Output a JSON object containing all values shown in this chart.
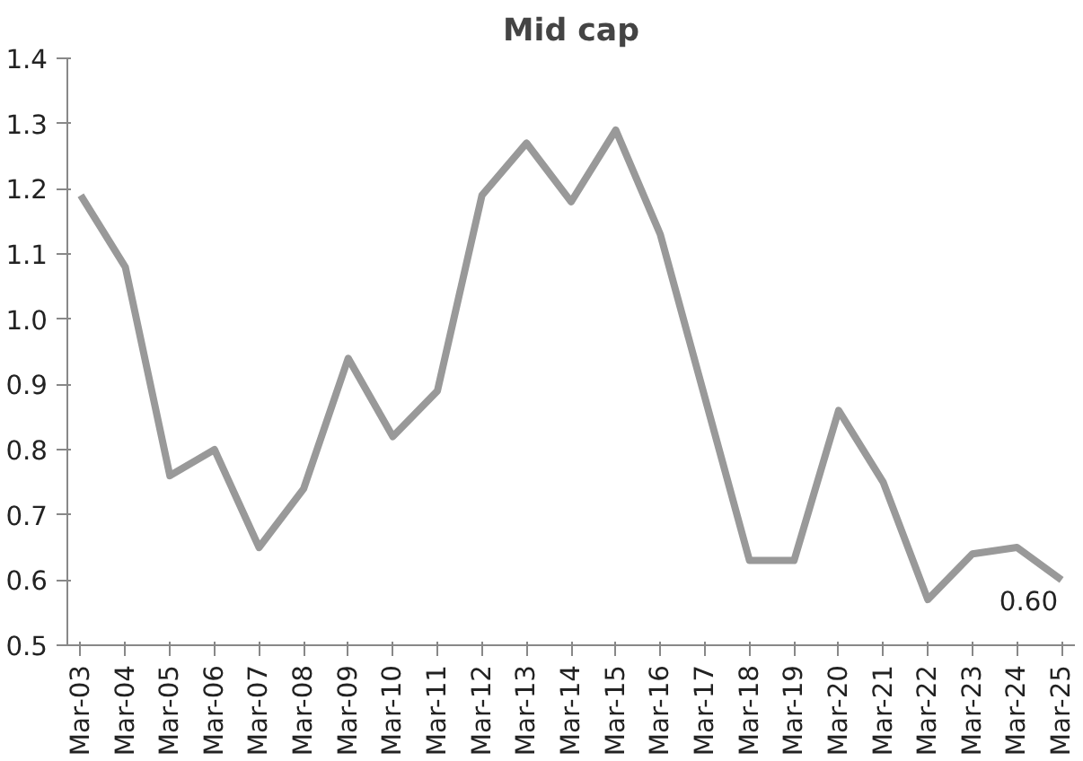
{
  "chart_data": {
    "type": "line",
    "title": "Mid cap",
    "categories": [
      "Mar-03",
      "Mar-04",
      "Mar-05",
      "Mar-06",
      "Mar-07",
      "Mar-08",
      "Mar-09",
      "Mar-10",
      "Mar-11",
      "Mar-12",
      "Mar-13",
      "Mar-14",
      "Mar-15",
      "Mar-16",
      "Mar-17",
      "Mar-18",
      "Mar-19",
      "Mar-20",
      "Mar-21",
      "Mar-22",
      "Mar-23",
      "Mar-24",
      "Mar-25"
    ],
    "series": [
      {
        "color": "#999999",
        "values": [
          1.19,
          1.08,
          0.76,
          0.8,
          0.65,
          0.74,
          0.94,
          0.82,
          0.89,
          1.19,
          1.27,
          1.18,
          1.29,
          1.13,
          0.88,
          0.63,
          0.63,
          0.86,
          0.75,
          0.57,
          0.64,
          0.65,
          0.6
        ],
        "value_labels": [
          null,
          null,
          null,
          null,
          null,
          null,
          null,
          null,
          null,
          null,
          null,
          null,
          null,
          null,
          null,
          null,
          null,
          null,
          null,
          null,
          null,
          null,
          "0.60"
        ]
      }
    ],
    "ylim": [
      0.5,
      1.4
    ],
    "yticks": [
      {
        "value": 0.5,
        "label": "0.5"
      },
      {
        "value": 0.6,
        "label": "0.6"
      },
      {
        "value": 0.7,
        "label": "0.7"
      },
      {
        "value": 0.8,
        "label": "0.8"
      },
      {
        "value": 0.9,
        "label": "0.9"
      },
      {
        "value": 1,
        "label": "1.0"
      },
      {
        "value": 1.1,
        "label": "1.1"
      },
      {
        "value": 1.2,
        "label": "1.2"
      },
      {
        "value": 1.3,
        "label": "1.3"
      },
      {
        "value": 1.4,
        "label": "1.4"
      }
    ],
    "grid": false,
    "marker": "none",
    "line_style": "solid"
  }
}
